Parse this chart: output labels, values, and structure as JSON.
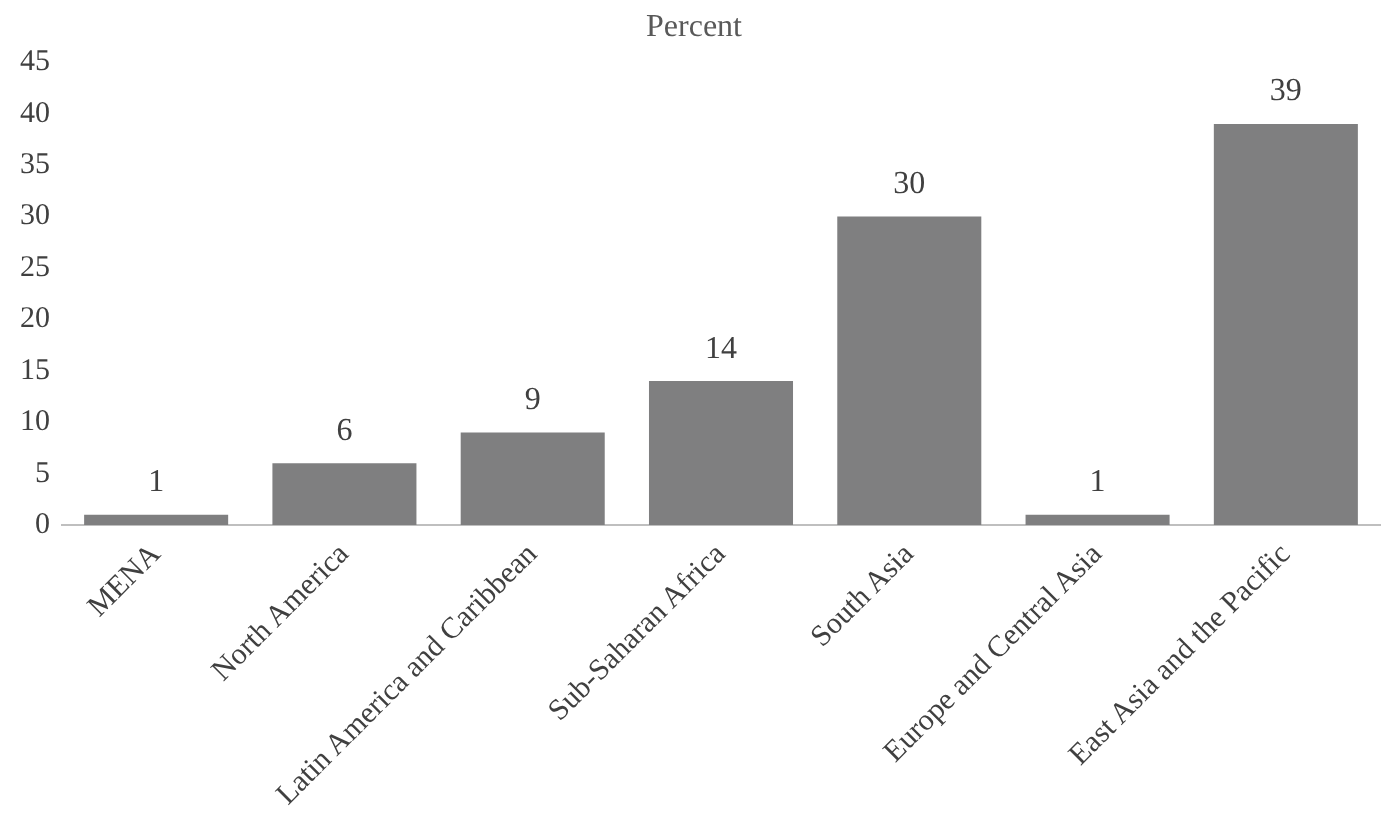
{
  "chart_data": {
    "type": "bar",
    "title": "Percent",
    "categories": [
      "MENA",
      "North America",
      "Latin America and Caribbean",
      "Sub-Saharan Africa",
      "South Asia",
      "Europe and Central Asia",
      "East Asia and the Pacific"
    ],
    "values": [
      1,
      6,
      9,
      14,
      30,
      1,
      39
    ],
    "color": "#7f7f80",
    "ylim": [
      0,
      45
    ],
    "yticks": [
      0,
      5,
      10,
      15,
      20,
      25,
      30,
      35,
      40,
      45
    ],
    "grid": false,
    "data_labels": true
  }
}
